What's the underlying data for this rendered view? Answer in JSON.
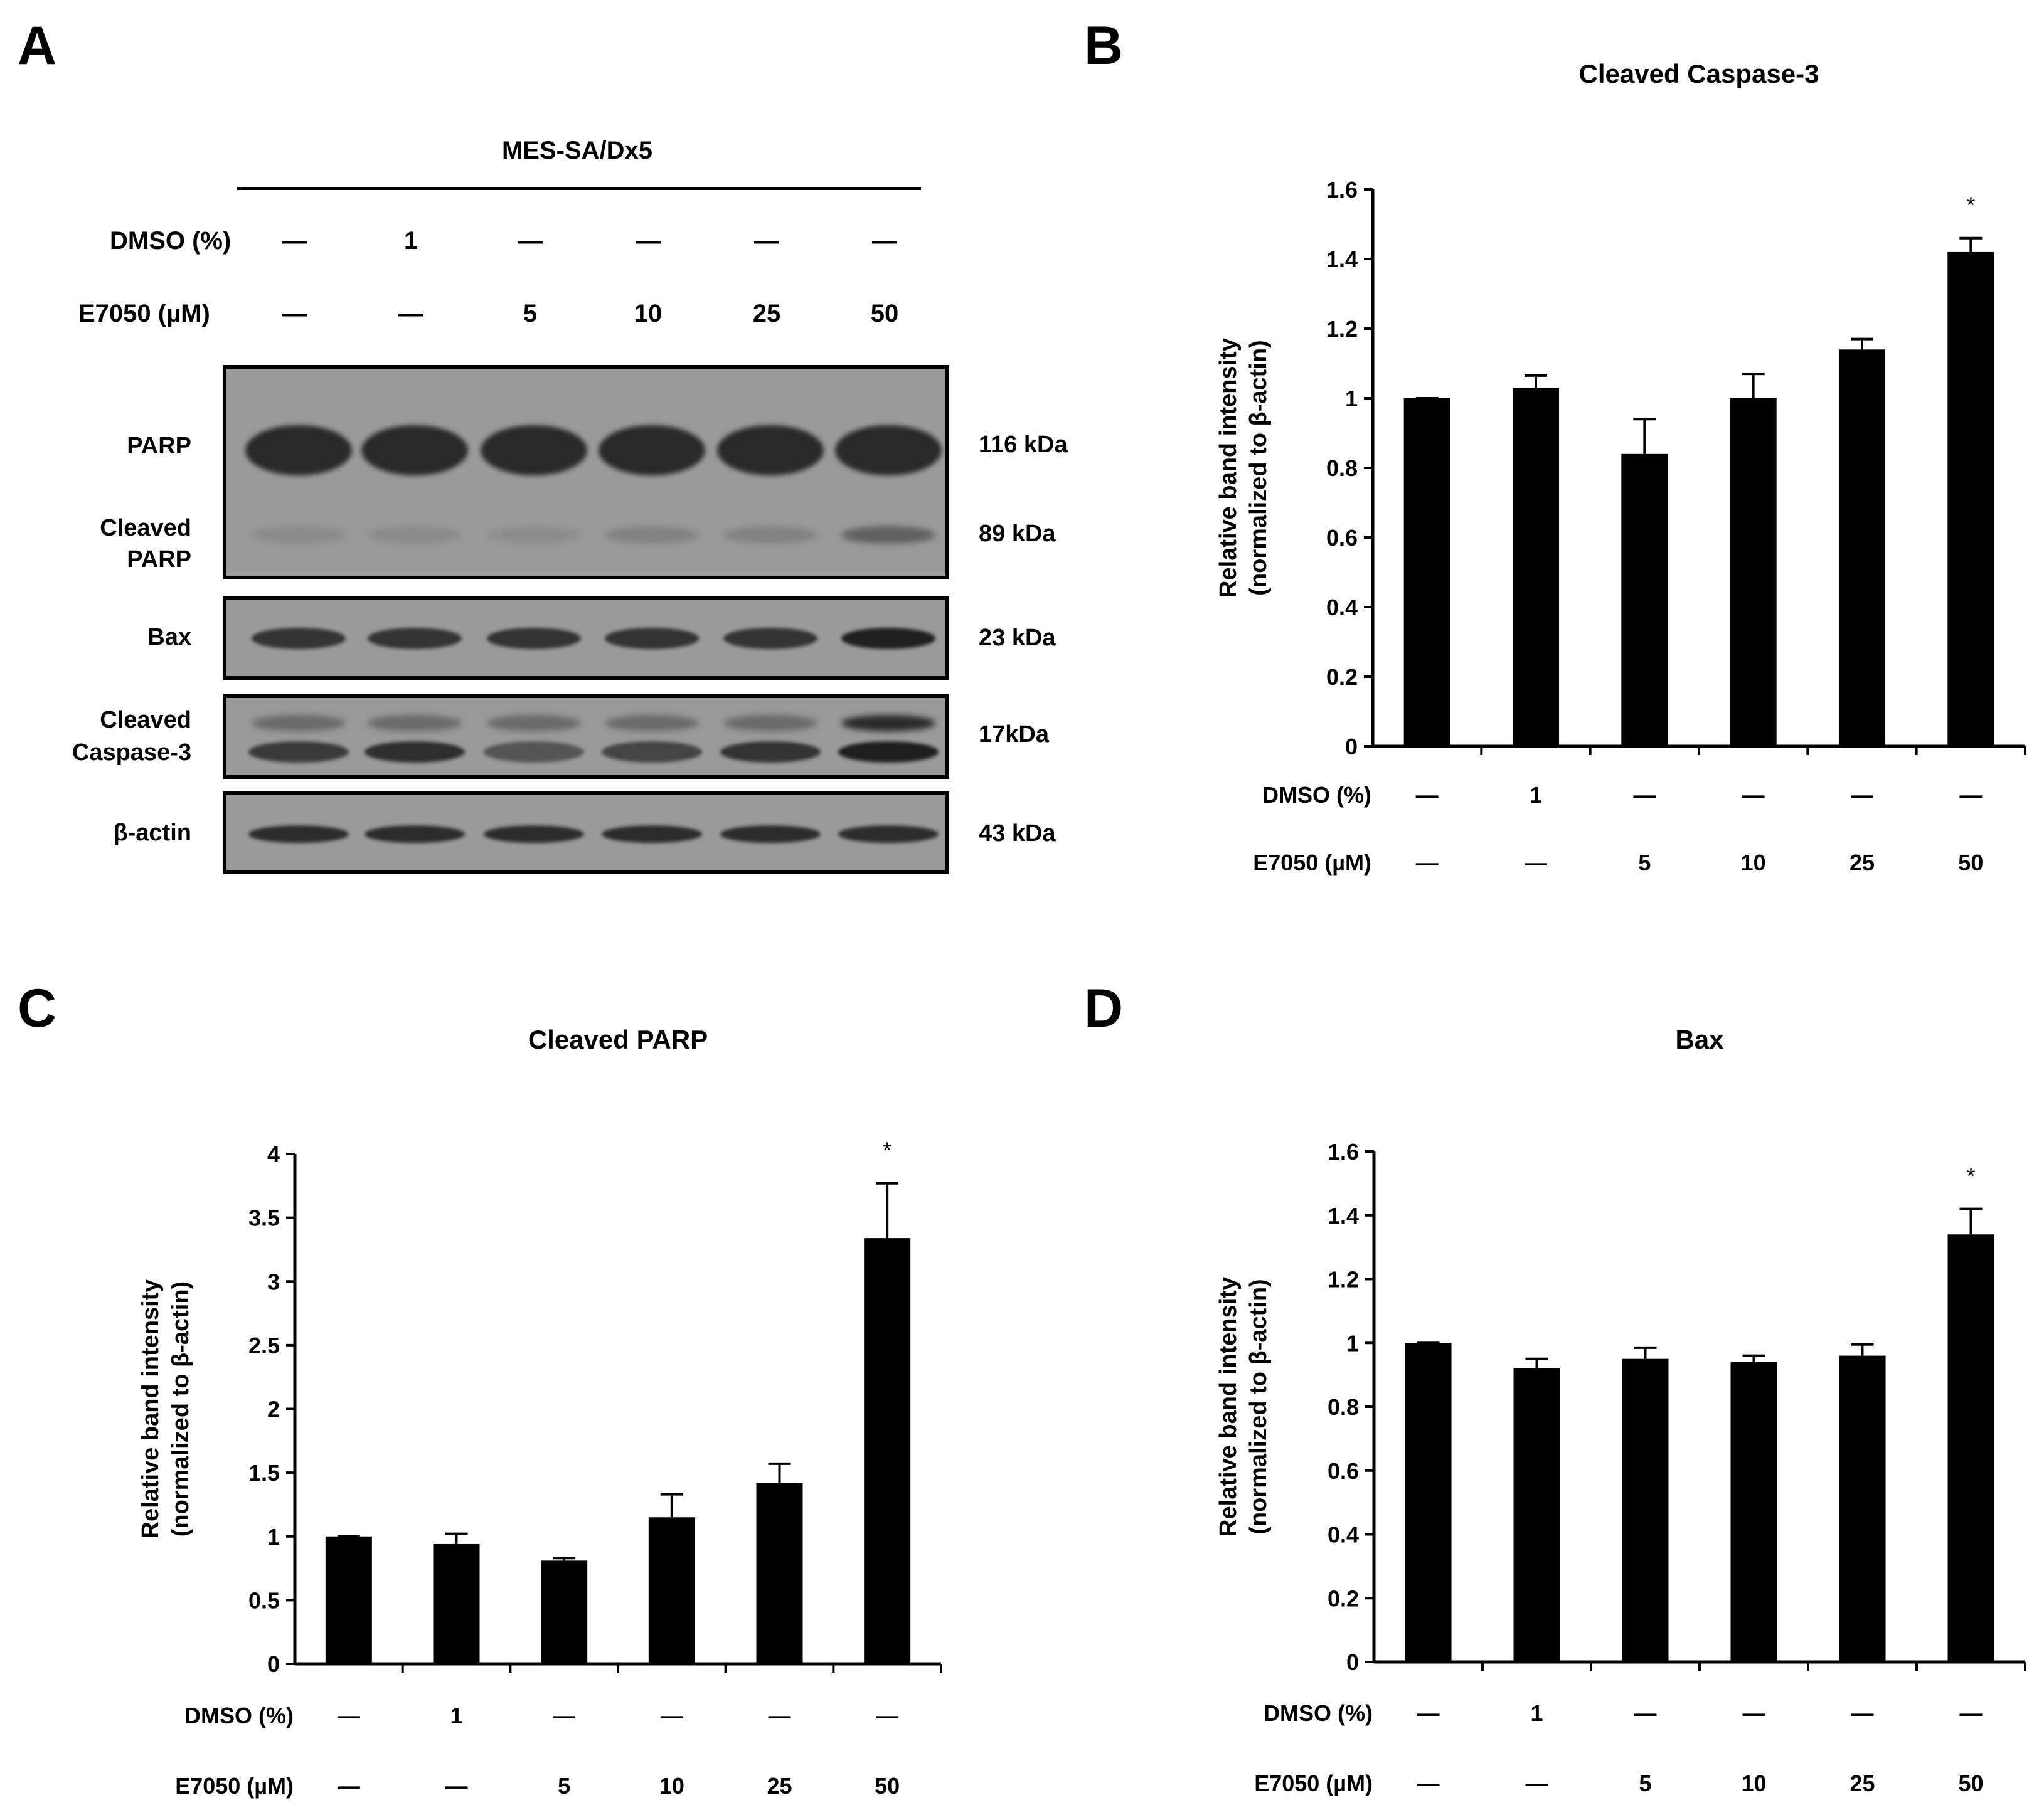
{
  "panels": {
    "a": "A",
    "b": "B",
    "c": "C",
    "d": "D"
  },
  "blot": {
    "cell_line": "MES-SA/Dx5",
    "dmso_label": "DMSO (%)",
    "e7050_label": "E7050 (µM)",
    "dmso_values": [
      "—",
      "1",
      "—",
      "—",
      "—",
      "—"
    ],
    "e7050_values": [
      "—",
      "—",
      "5",
      "10",
      "25",
      "50"
    ],
    "proteins": {
      "parp": "PARP",
      "cleaved_parp_1": "Cleaved",
      "cleaved_parp_2": "PARP",
      "bax": "Bax",
      "cleaved_casp_1": "Cleaved",
      "cleaved_casp_2": "Caspase-3",
      "actin": "β-actin"
    },
    "sizes": {
      "parp": "116 kDa",
      "cleaved_parp": "89 kDa",
      "bax": "23 kDa",
      "cleaved_casp": "17kDa",
      "actin": "43 kDa"
    }
  },
  "chart_data": [
    {
      "panel": "B",
      "type": "bar",
      "title": "Cleaved Caspase-3",
      "ylabel_line1": "Relative band intensity",
      "ylabel_line2": "(normalized to β-actin)",
      "ylim": [
        0,
        1.6
      ],
      "yticks": [
        0,
        0.2,
        0.4,
        0.6,
        0.8,
        1,
        1.2,
        1.4,
        1.6
      ],
      "ytick_labels": [
        "0",
        "0.2",
        "0.4",
        "0.6",
        "0.8",
        "1",
        "1.2",
        "1.4",
        "1.6"
      ],
      "values": [
        1.0,
        1.03,
        0.84,
        1.0,
        1.14,
        1.42
      ],
      "errors": [
        0.0,
        0.035,
        0.1,
        0.07,
        0.03,
        0.04
      ],
      "significance": [
        "",
        "",
        "",
        "",
        "",
        "*"
      ],
      "row1_label": "DMSO (%)",
      "row1": [
        "—",
        "1",
        "—",
        "—",
        "—",
        "—"
      ],
      "row2_label": "E7050 (µM)",
      "row2": [
        "—",
        "—",
        "5",
        "10",
        "25",
        "50"
      ]
    },
    {
      "panel": "C",
      "type": "bar",
      "title": "Cleaved PARP",
      "ylabel_line1": "Relative band intensity",
      "ylabel_line2": "(normalized to β-actin)",
      "ylim": [
        0,
        4
      ],
      "yticks": [
        0,
        0.5,
        1,
        1.5,
        2,
        2.5,
        3,
        3.5,
        4
      ],
      "ytick_labels": [
        "0",
        "0.5",
        "1",
        "1.5",
        "2",
        "2.5",
        "3",
        "3.5",
        "4"
      ],
      "values": [
        1.0,
        0.94,
        0.81,
        1.15,
        1.42,
        3.34
      ],
      "errors": [
        0.0,
        0.08,
        0.02,
        0.18,
        0.15,
        0.43
      ],
      "significance": [
        "",
        "",
        "",
        "",
        "",
        "*"
      ],
      "row1_label": "DMSO (%)",
      "row1": [
        "—",
        "1",
        "—",
        "—",
        "—",
        "—"
      ],
      "row2_label": "E7050 (µM)",
      "row2": [
        "—",
        "—",
        "5",
        "10",
        "25",
        "50"
      ]
    },
    {
      "panel": "D",
      "type": "bar",
      "title": "Bax",
      "ylabel_line1": "Relative band intensity",
      "ylabel_line2": "(normalized to β-actin)",
      "ylim": [
        0,
        1.6
      ],
      "yticks": [
        0,
        0.2,
        0.4,
        0.6,
        0.8,
        1,
        1.2,
        1.4,
        1.6
      ],
      "ytick_labels": [
        "0",
        "0.2",
        "0.4",
        "0.6",
        "0.8",
        "1",
        "1.2",
        "1.4",
        "1.6"
      ],
      "values": [
        1.0,
        0.92,
        0.95,
        0.94,
        0.96,
        1.34
      ],
      "errors": [
        0.0,
        0.03,
        0.035,
        0.02,
        0.035,
        0.08
      ],
      "significance": [
        "",
        "",
        "",
        "",
        "",
        "*"
      ],
      "row1_label": "DMSO (%)",
      "row1": [
        "—",
        "1",
        "—",
        "—",
        "—",
        "—"
      ],
      "row2_label": "E7050 (µM)",
      "row2": [
        "—",
        "—",
        "5",
        "10",
        "25",
        "50"
      ]
    }
  ]
}
